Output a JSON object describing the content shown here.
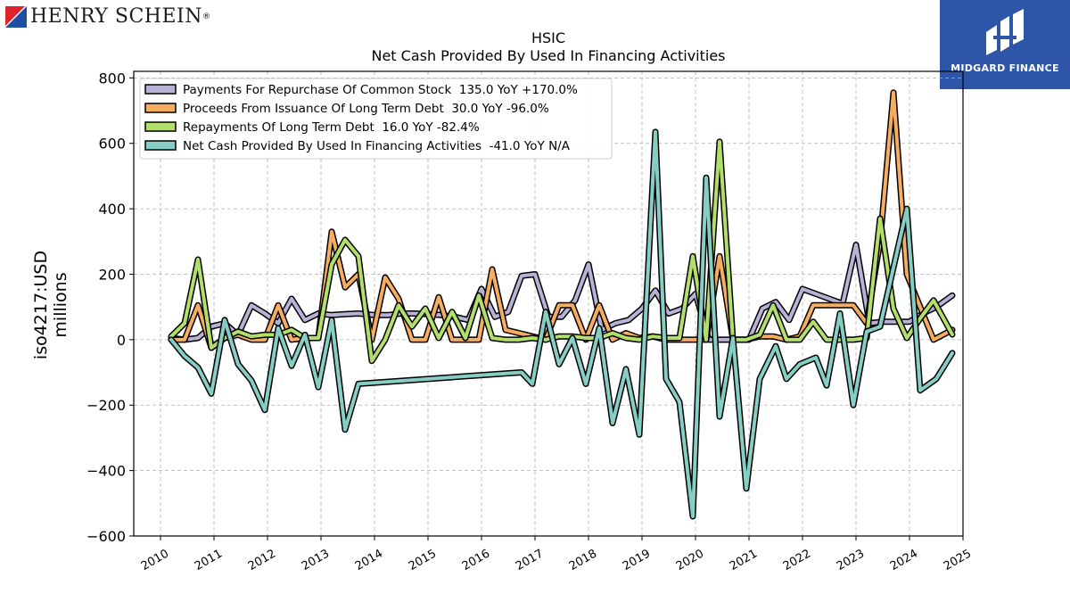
{
  "logos": {
    "henry_schein": "HENRY SCHEIN",
    "henry_schein_mark": "®",
    "midgard": "MIDGARD FINANCE"
  },
  "colors": {
    "repurchase": "#b7b2d6",
    "issuance": "#f7ad61",
    "repayments": "#b2de6c",
    "net_cash": "#86cec3",
    "outline": "#000000",
    "grid": "#b0b0b0",
    "midgard_bg": "#2e56a8"
  },
  "chart_data": {
    "type": "line",
    "title": "HSIC",
    "subtitle": "Net Cash Provided By Used In Financing Activities",
    "xlabel": "",
    "ylabel": "iso4217:USD",
    "ylabel2": "millions",
    "xlim": [
      2009.5,
      2025.0
    ],
    "ylim": [
      -600,
      820
    ],
    "x_ticks": [
      2010,
      2011,
      2012,
      2013,
      2014,
      2015,
      2016,
      2017,
      2018,
      2019,
      2020,
      2021,
      2022,
      2023,
      2024,
      2025
    ],
    "x_tick_labels": [
      "2010",
      "2011",
      "2012",
      "2013",
      "2014",
      "2015",
      "2016",
      "2017",
      "2018",
      "2019",
      "2020",
      "2021",
      "2022",
      "2023",
      "2024",
      "2025"
    ],
    "y_ticks": [
      800,
      600,
      400,
      200,
      0,
      -200,
      -400,
      -600
    ],
    "y_tick_labels": [
      "800",
      "600",
      "400",
      "200",
      "0",
      "−200",
      "−400",
      "−600"
    ],
    "grid": true,
    "legend_position": "top-left",
    "series": [
      {
        "key": "repurchase",
        "name": "Payments For Repurchase Of Common Stock  135.0 YoY +170.0%",
        "points": [
          [
            2010.2,
            5
          ],
          [
            2010.45,
            0
          ],
          [
            2010.7,
            5
          ],
          [
            2010.95,
            40
          ],
          [
            2011.2,
            50
          ],
          [
            2011.45,
            15
          ],
          [
            2011.7,
            105
          ],
          [
            2011.95,
            80
          ],
          [
            2012.2,
            50
          ],
          [
            2012.45,
            125
          ],
          [
            2012.7,
            60
          ],
          [
            2012.95,
            80
          ],
          [
            2013.2,
            75
          ],
          [
            2013.45,
            78
          ],
          [
            2013.7,
            80
          ],
          [
            2014.0,
            75
          ],
          [
            2014.25,
            75
          ],
          [
            2014.5,
            80
          ],
          [
            2014.75,
            80
          ],
          [
            2015.0,
            78
          ],
          [
            2015.25,
            75
          ],
          [
            2015.5,
            70
          ],
          [
            2015.75,
            60
          ],
          [
            2016.0,
            155
          ],
          [
            2016.25,
            70
          ],
          [
            2016.5,
            85
          ],
          [
            2016.75,
            195
          ],
          [
            2017.0,
            200
          ],
          [
            2017.25,
            70
          ],
          [
            2017.5,
            70
          ],
          [
            2017.75,
            120
          ],
          [
            2018.0,
            230
          ],
          [
            2018.25,
            30
          ],
          [
            2018.5,
            50
          ],
          [
            2018.75,
            60
          ],
          [
            2019.0,
            95
          ],
          [
            2019.25,
            150
          ],
          [
            2019.5,
            80
          ],
          [
            2019.75,
            95
          ],
          [
            2020.0,
            140
          ],
          [
            2020.25,
            0
          ],
          [
            2020.5,
            0
          ],
          [
            2020.75,
            0
          ],
          [
            2021.0,
            0
          ],
          [
            2021.25,
            95
          ],
          [
            2021.5,
            115
          ],
          [
            2021.75,
            60
          ],
          [
            2022.0,
            155
          ],
          [
            2022.25,
            140
          ],
          [
            2022.5,
            125
          ],
          [
            2022.75,
            110
          ],
          [
            2023.0,
            290
          ],
          [
            2023.25,
            50
          ],
          [
            2023.5,
            55
          ],
          [
            2023.75,
            55
          ],
          [
            2024.0,
            55
          ],
          [
            2024.25,
            80
          ],
          [
            2024.5,
            100
          ],
          [
            2024.8,
            135
          ]
        ]
      },
      {
        "key": "issuance",
        "name": "Proceeds From Issuance Of Long Term Debt  30.0 YoY -96.0%",
        "points": [
          [
            2010.2,
            0
          ],
          [
            2010.45,
            0
          ],
          [
            2010.7,
            105
          ],
          [
            2010.95,
            -25
          ],
          [
            2011.2,
            5
          ],
          [
            2011.45,
            15
          ],
          [
            2011.7,
            0
          ],
          [
            2011.95,
            0
          ],
          [
            2012.2,
            105
          ],
          [
            2012.45,
            0
          ],
          [
            2012.7,
            5
          ],
          [
            2012.95,
            5
          ],
          [
            2013.2,
            330
          ],
          [
            2013.45,
            160
          ],
          [
            2013.7,
            200
          ],
          [
            2013.95,
            0
          ],
          [
            2014.2,
            190
          ],
          [
            2014.45,
            125
          ],
          [
            2014.7,
            0
          ],
          [
            2014.95,
            0
          ],
          [
            2015.2,
            130
          ],
          [
            2015.45,
            0
          ],
          [
            2015.7,
            0
          ],
          [
            2015.95,
            0
          ],
          [
            2016.2,
            215
          ],
          [
            2016.45,
            30
          ],
          [
            2016.7,
            20
          ],
          [
            2016.95,
            10
          ],
          [
            2017.2,
            0
          ],
          [
            2017.45,
            105
          ],
          [
            2017.7,
            105
          ],
          [
            2017.95,
            0
          ],
          [
            2018.2,
            105
          ],
          [
            2018.45,
            0
          ],
          [
            2018.7,
            20
          ],
          [
            2018.95,
            5
          ],
          [
            2019.2,
            10
          ],
          [
            2019.45,
            0
          ],
          [
            2019.7,
            0
          ],
          [
            2019.95,
            0
          ],
          [
            2020.2,
            0
          ],
          [
            2020.45,
            255
          ],
          [
            2020.7,
            0
          ],
          [
            2020.95,
            0
          ],
          [
            2021.2,
            10
          ],
          [
            2021.45,
            10
          ],
          [
            2021.7,
            0
          ],
          [
            2021.95,
            10
          ],
          [
            2022.2,
            105
          ],
          [
            2022.45,
            105
          ],
          [
            2022.7,
            105
          ],
          [
            2022.95,
            105
          ],
          [
            2023.2,
            50
          ],
          [
            2023.45,
            300
          ],
          [
            2023.7,
            755
          ],
          [
            2023.95,
            200
          ],
          [
            2024.2,
            100
          ],
          [
            2024.45,
            0
          ],
          [
            2024.8,
            30
          ]
        ]
      },
      {
        "key": "repayments",
        "name": "Repayments Of Long Term Debt  16.0 YoY -82.4%",
        "points": [
          [
            2010.2,
            10
          ],
          [
            2010.45,
            50
          ],
          [
            2010.7,
            245
          ],
          [
            2010.95,
            -25
          ],
          [
            2011.2,
            5
          ],
          [
            2011.45,
            25
          ],
          [
            2011.7,
            10
          ],
          [
            2011.95,
            15
          ],
          [
            2012.2,
            15
          ],
          [
            2012.45,
            30
          ],
          [
            2012.7,
            5
          ],
          [
            2012.95,
            5
          ],
          [
            2013.2,
            230
          ],
          [
            2013.45,
            305
          ],
          [
            2013.7,
            255
          ],
          [
            2013.95,
            -65
          ],
          [
            2014.2,
            0
          ],
          [
            2014.45,
            105
          ],
          [
            2014.7,
            40
          ],
          [
            2014.95,
            95
          ],
          [
            2015.2,
            5
          ],
          [
            2015.45,
            85
          ],
          [
            2015.7,
            5
          ],
          [
            2015.95,
            135
          ],
          [
            2016.2,
            5
          ],
          [
            2016.45,
            0
          ],
          [
            2016.7,
            0
          ],
          [
            2016.95,
            5
          ],
          [
            2017.2,
            0
          ],
          [
            2017.45,
            10
          ],
          [
            2017.7,
            10
          ],
          [
            2017.95,
            5
          ],
          [
            2018.2,
            5
          ],
          [
            2018.45,
            20
          ],
          [
            2018.7,
            5
          ],
          [
            2018.95,
            0
          ],
          [
            2019.2,
            10
          ],
          [
            2019.45,
            5
          ],
          [
            2019.7,
            5
          ],
          [
            2019.95,
            255
          ],
          [
            2020.2,
            0
          ],
          [
            2020.45,
            605
          ],
          [
            2020.7,
            0
          ],
          [
            2020.95,
            0
          ],
          [
            2021.2,
            15
          ],
          [
            2021.45,
            105
          ],
          [
            2021.7,
            0
          ],
          [
            2021.95,
            0
          ],
          [
            2022.2,
            55
          ],
          [
            2022.45,
            0
          ],
          [
            2022.7,
            0
          ],
          [
            2022.95,
            0
          ],
          [
            2023.2,
            5
          ],
          [
            2023.45,
            370
          ],
          [
            2023.7,
            95
          ],
          [
            2023.95,
            5
          ],
          [
            2024.2,
            65
          ],
          [
            2024.45,
            120
          ],
          [
            2024.8,
            16
          ]
        ]
      },
      {
        "key": "net_cash",
        "name": "Net Cash Provided By Used In Financing Activities  -41.0 YoY N/A",
        "points": [
          [
            2010.2,
            0
          ],
          [
            2010.45,
            -50
          ],
          [
            2010.7,
            -85
          ],
          [
            2010.95,
            -165
          ],
          [
            2011.2,
            60
          ],
          [
            2011.45,
            -75
          ],
          [
            2011.7,
            -125
          ],
          [
            2011.95,
            -215
          ],
          [
            2012.2,
            35
          ],
          [
            2012.45,
            -80
          ],
          [
            2012.7,
            15
          ],
          [
            2012.95,
            -145
          ],
          [
            2013.2,
            60
          ],
          [
            2013.45,
            -275
          ],
          [
            2013.7,
            -135
          ],
          [
            2016.75,
            -100
          ],
          [
            2016.95,
            -135
          ],
          [
            2017.2,
            85
          ],
          [
            2017.45,
            -75
          ],
          [
            2017.7,
            5
          ],
          [
            2017.95,
            -135
          ],
          [
            2018.2,
            35
          ],
          [
            2018.45,
            -255
          ],
          [
            2018.7,
            -90
          ],
          [
            2018.95,
            -290
          ],
          [
            2019.25,
            635
          ],
          [
            2019.45,
            -120
          ],
          [
            2019.7,
            -190
          ],
          [
            2019.95,
            -540
          ],
          [
            2020.2,
            495
          ],
          [
            2020.45,
            -235
          ],
          [
            2020.7,
            5
          ],
          [
            2020.95,
            -455
          ],
          [
            2021.2,
            -120
          ],
          [
            2021.5,
            -20
          ],
          [
            2021.7,
            -120
          ],
          [
            2021.95,
            -75
          ],
          [
            2022.25,
            -55
          ],
          [
            2022.45,
            -140
          ],
          [
            2022.7,
            80
          ],
          [
            2022.95,
            -200
          ],
          [
            2023.2,
            25
          ],
          [
            2023.45,
            40
          ],
          [
            2023.95,
            400
          ],
          [
            2024.2,
            -155
          ],
          [
            2024.5,
            -120
          ],
          [
            2024.8,
            -41
          ]
        ]
      }
    ]
  }
}
